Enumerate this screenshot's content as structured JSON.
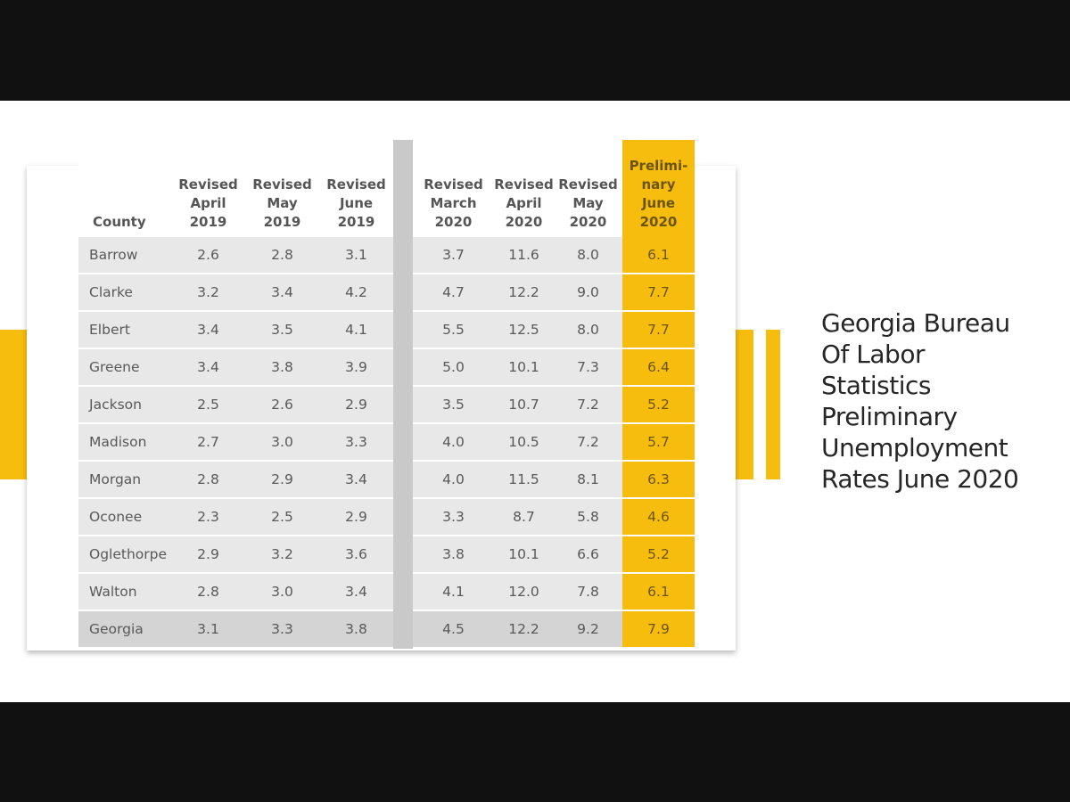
{
  "title_lines": [
    "Georgia Bureau",
    "Of Labor",
    "Statistics",
    "Preliminary",
    "Unemployment",
    "Rates June 2020"
  ],
  "colors": {
    "accent": "#f6bd0e",
    "row_bg": "#e8e8e8",
    "total_row_bg": "#d4d4d4",
    "divider": "#c9c9c9",
    "letterbox": "#111111"
  },
  "chart_data": {
    "type": "table",
    "columns": [
      {
        "lines": [
          "County"
        ]
      },
      {
        "lines": [
          "Revised",
          "April",
          "2019"
        ]
      },
      {
        "lines": [
          "Revised",
          "May",
          "2019"
        ]
      },
      {
        "lines": [
          "Revised",
          "June",
          "2019"
        ]
      },
      {
        "lines": [
          "Revised",
          "March",
          "2020"
        ]
      },
      {
        "lines": [
          "Revised",
          "April",
          "2020"
        ]
      },
      {
        "lines": [
          "Revised",
          "May",
          "2020"
        ]
      },
      {
        "lines": [
          "Prelimi-",
          "nary",
          "June",
          "2020"
        ]
      }
    ],
    "rows": [
      {
        "county": "Barrow",
        "values": [
          "2.6",
          "2.8",
          "3.1",
          "3.7",
          "11.6",
          "8.0",
          "6.1"
        ]
      },
      {
        "county": "Clarke",
        "values": [
          "3.2",
          "3.4",
          "4.2",
          "4.7",
          "12.2",
          "9.0",
          "7.7"
        ]
      },
      {
        "county": "Elbert",
        "values": [
          "3.4",
          "3.5",
          "4.1",
          "5.5",
          "12.5",
          "8.0",
          "7.7"
        ]
      },
      {
        "county": "Greene",
        "values": [
          "3.4",
          "3.8",
          "3.9",
          "5.0",
          "10.1",
          "7.3",
          "6.4"
        ]
      },
      {
        "county": "Jackson",
        "values": [
          "2.5",
          "2.6",
          "2.9",
          "3.5",
          "10.7",
          "7.2",
          "5.2"
        ]
      },
      {
        "county": "Madison",
        "values": [
          "2.7",
          "3.0",
          "3.3",
          "4.0",
          "10.5",
          "7.2",
          "5.7"
        ]
      },
      {
        "county": "Morgan",
        "values": [
          "2.8",
          "2.9",
          "3.4",
          "4.0",
          "11.5",
          "8.1",
          "6.3"
        ]
      },
      {
        "county": "Oconee",
        "values": [
          "2.3",
          "2.5",
          "2.9",
          "3.3",
          "8.7",
          "5.8",
          "4.6"
        ]
      },
      {
        "county": "Oglethorpe",
        "values": [
          "2.9",
          "3.2",
          "3.6",
          "3.8",
          "10.1",
          "6.6",
          "5.2"
        ]
      },
      {
        "county": "Walton",
        "values": [
          "2.8",
          "3.0",
          "3.4",
          "4.1",
          "12.0",
          "7.8",
          "6.1"
        ]
      },
      {
        "county": "Georgia",
        "values": [
          "3.1",
          "3.3",
          "3.8",
          "4.5",
          "12.2",
          "9.2",
          "7.9"
        ],
        "total": true
      }
    ]
  }
}
